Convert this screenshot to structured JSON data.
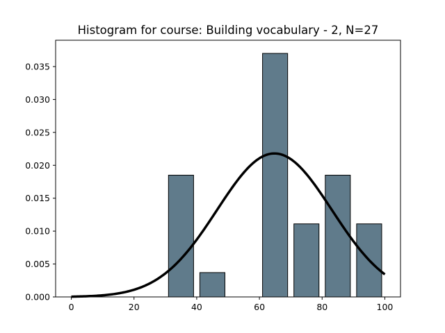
{
  "chart_data": {
    "type": "bar",
    "title": "Histogram for course: Building vocabulary - 2,  N=27",
    "xlabel": "",
    "ylabel": "",
    "xlim": [
      -5,
      105
    ],
    "ylim": [
      0,
      0.039
    ],
    "xticks": [
      0,
      20,
      40,
      60,
      80,
      100
    ],
    "xtick_labels": [
      "0",
      "20",
      "40",
      "60",
      "80",
      "100"
    ],
    "yticks": [
      0.0,
      0.005,
      0.01,
      0.015,
      0.02,
      0.025,
      0.03,
      0.035
    ],
    "ytick_labels": [
      "0.000",
      "0.005",
      "0.010",
      "0.015",
      "0.020",
      "0.025",
      "0.030",
      "0.035"
    ],
    "bins": [
      {
        "start": 0,
        "end": 10,
        "density": 0.0
      },
      {
        "start": 10,
        "end": 20,
        "density": 0.0
      },
      {
        "start": 20,
        "end": 30,
        "density": 0.0
      },
      {
        "start": 30,
        "end": 40,
        "density": 0.0185
      },
      {
        "start": 40,
        "end": 50,
        "density": 0.0037
      },
      {
        "start": 50,
        "end": 60,
        "density": 0.0
      },
      {
        "start": 60,
        "end": 70,
        "density": 0.037
      },
      {
        "start": 70,
        "end": 80,
        "density": 0.0111
      },
      {
        "start": 80,
        "end": 90,
        "density": 0.0185
      },
      {
        "start": 90,
        "end": 100,
        "density": 0.0111
      }
    ],
    "normal_curve": {
      "mean": 64.8,
      "std": 18.3,
      "x_range": [
        0,
        100
      ]
    },
    "grid": false,
    "bar_color": "#607b8b",
    "bar_edge_color": "#000000",
    "curve_color": "#000000"
  }
}
